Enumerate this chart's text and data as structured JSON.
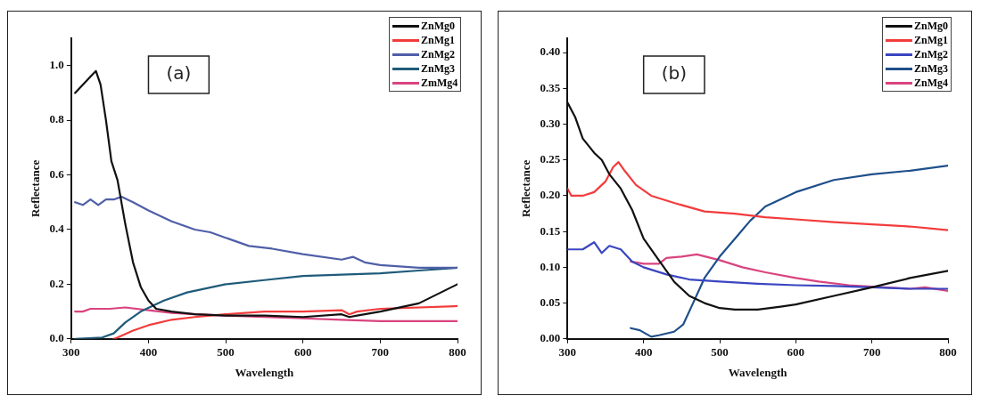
{
  "chart_data": [
    {
      "type": "line",
      "xlabel": "Wavelength",
      "ylabel": "Reflectance",
      "annotations": [
        "(a)"
      ],
      "xlim": [
        300,
        800
      ],
      "xticks": [
        300,
        400,
        500,
        600,
        700,
        800
      ],
      "ylim": [
        0,
        1.1
      ],
      "yticks": [
        {
          "value": 0,
          "label": "0.0"
        },
        {
          "value": 0.2,
          "label": "0.2"
        },
        {
          "value": 0.4,
          "label": "0.4"
        },
        {
          "value": 0.6,
          "label": "0.6"
        },
        {
          "value": 0.8,
          "label": "0.8"
        },
        {
          "value": 1.0,
          "label": "1.0"
        }
      ],
      "grid": false,
      "legend": "top right",
      "marker": "none",
      "line_style": "solid",
      "series": [
        {
          "name": "ZnMg0",
          "color": "#111111",
          "x": [
            305,
            315,
            325,
            332,
            338,
            345,
            352,
            360,
            370,
            380,
            390,
            400,
            410,
            430,
            460,
            500,
            550,
            600,
            650,
            660,
            670,
            700,
            750,
            800
          ],
          "values": [
            0.9,
            0.93,
            0.96,
            0.98,
            0.93,
            0.8,
            0.65,
            0.58,
            0.42,
            0.28,
            0.19,
            0.14,
            0.11,
            0.1,
            0.09,
            0.085,
            0.085,
            0.08,
            0.09,
            0.08,
            0.085,
            0.1,
            0.13,
            0.2
          ]
        },
        {
          "name": "ZnMg1",
          "color": "#f23c3c",
          "x": [
            355,
            360,
            380,
            400,
            430,
            460,
            500,
            550,
            600,
            650,
            660,
            670,
            700,
            800
          ],
          "values": [
            0,
            0.005,
            0.03,
            0.05,
            0.07,
            0.08,
            0.09,
            0.1,
            0.1,
            0.105,
            0.09,
            0.1,
            0.11,
            0.12
          ]
        },
        {
          "name": "ZnMg2",
          "color": "#4f5fa8",
          "x": [
            305,
            315,
            325,
            335,
            345,
            355,
            365,
            380,
            400,
            430,
            460,
            480,
            500,
            530,
            560,
            600,
            650,
            665,
            680,
            700,
            750,
            800
          ],
          "values": [
            0.5,
            0.49,
            0.51,
            0.49,
            0.51,
            0.51,
            0.52,
            0.5,
            0.47,
            0.43,
            0.4,
            0.39,
            0.37,
            0.34,
            0.33,
            0.31,
            0.29,
            0.3,
            0.28,
            0.27,
            0.26,
            0.26
          ]
        },
        {
          "name": "ZnMg3",
          "color": "#1f5b7a",
          "x": [
            305,
            340,
            355,
            370,
            390,
            420,
            450,
            500,
            550,
            600,
            650,
            700,
            750,
            800
          ],
          "values": [
            0,
            0.005,
            0.02,
            0.06,
            0.1,
            0.14,
            0.17,
            0.2,
            0.215,
            0.23,
            0.235,
            0.24,
            0.25,
            0.26
          ]
        },
        {
          "name": "ZmMg4",
          "color": "#d9447f",
          "x": [
            305,
            315,
            325,
            350,
            370,
            400,
            430,
            460,
            500,
            550,
            600,
            650,
            700,
            800
          ],
          "values": [
            0.1,
            0.1,
            0.11,
            0.11,
            0.115,
            0.105,
            0.095,
            0.09,
            0.085,
            0.08,
            0.075,
            0.07,
            0.065,
            0.065
          ]
        }
      ]
    },
    {
      "type": "line",
      "xlabel": "Wavelength",
      "ylabel": "Reflectance",
      "annotations": [
        "(b)"
      ],
      "xlim": [
        300,
        800
      ],
      "xticks": [
        300,
        400,
        500,
        600,
        700,
        800
      ],
      "ylim": [
        0,
        0.42
      ],
      "yticks": [
        {
          "value": 0,
          "label": "0.00"
        },
        {
          "value": 0.05,
          "label": "0.05"
        },
        {
          "value": 0.1,
          "label": "0.10"
        },
        {
          "value": 0.15,
          "label": "0.15"
        },
        {
          "value": 0.2,
          "label": "0.20"
        },
        {
          "value": 0.25,
          "label": "0.25"
        },
        {
          "value": 0.3,
          "label": "0.30"
        },
        {
          "value": 0.35,
          "label": "0.35"
        },
        {
          "value": 0.4,
          "label": "0.40"
        }
      ],
      "grid": false,
      "legend": "top right",
      "marker": "none",
      "line_style": "solid",
      "series": [
        {
          "name": "ZnMg0",
          "color": "#111111",
          "x": [
            300,
            310,
            320,
            335,
            345,
            355,
            370,
            385,
            400,
            420,
            440,
            460,
            480,
            500,
            520,
            550,
            580,
            600,
            650,
            700,
            750,
            800
          ],
          "values": [
            0.33,
            0.31,
            0.28,
            0.26,
            0.25,
            0.23,
            0.21,
            0.18,
            0.14,
            0.11,
            0.08,
            0.06,
            0.05,
            0.043,
            0.041,
            0.041,
            0.045,
            0.048,
            0.06,
            0.072,
            0.085,
            0.095
          ]
        },
        {
          "name": "ZnMg1",
          "color": "#f23c3c",
          "x": [
            300,
            305,
            320,
            335,
            350,
            360,
            367,
            375,
            390,
            410,
            440,
            480,
            520,
            560,
            600,
            650,
            700,
            750,
            800
          ],
          "values": [
            0.21,
            0.2,
            0.2,
            0.205,
            0.22,
            0.24,
            0.247,
            0.235,
            0.215,
            0.2,
            0.19,
            0.178,
            0.175,
            0.17,
            0.167,
            0.163,
            0.16,
            0.157,
            0.152
          ]
        },
        {
          "name": "ZnMg2",
          "color": "#3a45c0",
          "x": [
            300,
            320,
            335,
            345,
            355,
            370,
            385,
            400,
            430,
            460,
            500,
            550,
            600,
            650,
            700,
            750,
            800
          ],
          "values": [
            0.125,
            0.125,
            0.135,
            0.12,
            0.13,
            0.125,
            0.108,
            0.1,
            0.09,
            0.083,
            0.08,
            0.077,
            0.075,
            0.074,
            0.072,
            0.07,
            0.07
          ]
        },
        {
          "name": "ZnMg3",
          "color": "#1f4f8a",
          "x": [
            383,
            395,
            410,
            420,
            440,
            452,
            465,
            480,
            500,
            520,
            540,
            560,
            600,
            650,
            700,
            750,
            800
          ],
          "values": [
            0.015,
            0.012,
            0.003,
            0.005,
            0.01,
            0.02,
            0.05,
            0.085,
            0.115,
            0.14,
            0.165,
            0.185,
            0.205,
            0.222,
            0.23,
            0.235,
            0.242
          ]
        },
        {
          "name": "ZnMg4",
          "color": "#d9447f",
          "x": [
            383,
            400,
            420,
            430,
            450,
            470,
            500,
            530,
            560,
            600,
            630,
            670,
            700,
            750,
            770,
            800
          ],
          "values": [
            0.108,
            0.105,
            0.105,
            0.113,
            0.115,
            0.118,
            0.11,
            0.1,
            0.093,
            0.085,
            0.08,
            0.075,
            0.073,
            0.07,
            0.072,
            0.067
          ]
        }
      ]
    }
  ]
}
